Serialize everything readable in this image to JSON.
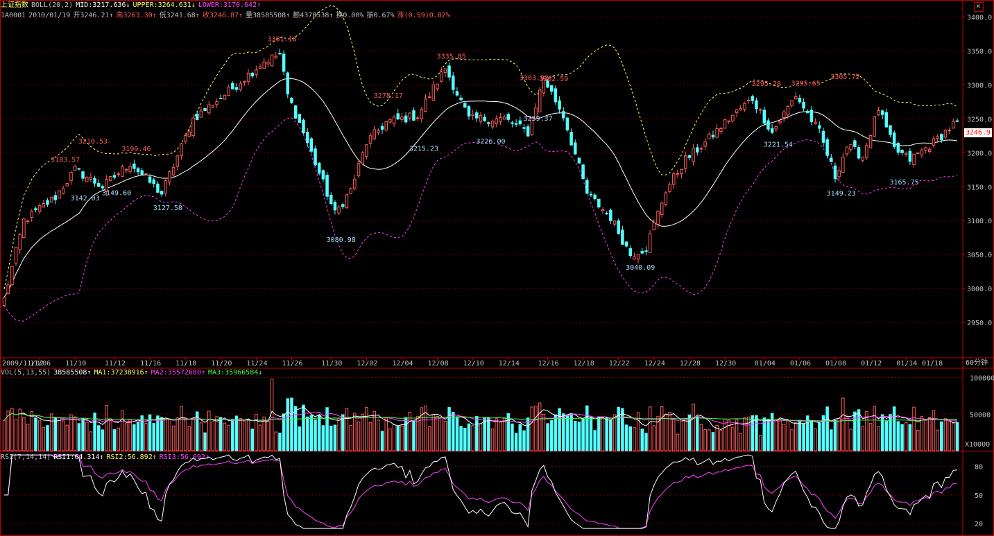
{
  "header": {
    "line1": {
      "name": "上证指数",
      "indicator": "BOLL(20,2)",
      "mid": "MID:3217.636↓",
      "upper": "UPPER:3264.631↓",
      "lower": "LOWER:3170.642↑"
    },
    "line2": {
      "code": "1A0001",
      "date": "2010/01/19",
      "open": "开3246.21↑",
      "high": "高3263.30↑",
      "low": "低3241.68↑",
      "close": "收3246.87↑",
      "volume": "量38585508↑",
      "amount": "额4378538↑",
      "turnover": "换0.00%",
      "amplitude": "振0.67%",
      "change": "涨(0.59)0.02%"
    }
  },
  "period_label": "60分钟",
  "last_price_tag": "3246.9",
  "colors": {
    "up": "#ff5a5a",
    "down": "#54ffff",
    "mid": "#ffffff",
    "upper": "#ffff66",
    "lower": "#ff44ff",
    "grid": "#7a0000",
    "axis": "#c00000",
    "vol_ma1": "#ffffff",
    "vol_ma2": "#ff44ff",
    "vol_ma3": "#44ff44",
    "rsi1": "#ffffff",
    "rsi3": "#ff44ff"
  },
  "chart_data": [
    {
      "type": "candlestick",
      "title": "上证指数 BOLL(20,2)",
      "ylim": [
        2900,
        3420
      ],
      "y_ticks": [
        "3400.0",
        "3350.0",
        "3300.0",
        "3250.0",
        "3200.0",
        "3150.0",
        "3100.0",
        "3050.0",
        "3000.0",
        "2950.0"
      ],
      "x_labels": [
        "2009/11/02",
        "11/06",
        "11/10",
        "11/12",
        "11/16",
        "11/18",
        "11/20",
        "11/24",
        "11/26",
        "11/30",
        "12/02",
        "12/04",
        "12/08",
        "12/10",
        "12/14",
        "12/16",
        "12/18",
        "12/22",
        "12/24",
        "12/28",
        "12/30",
        "01/04",
        "01/06",
        "01/08",
        "01/12",
        "01/14",
        "01/18"
      ],
      "bar_count": 243,
      "anchors": [
        {
          "i": 0,
          "v": 2985
        },
        {
          "i": 5,
          "v": 3100
        },
        {
          "i": 13,
          "v": 3135
        },
        {
          "i": 18,
          "v": 3175
        },
        {
          "i": 25,
          "v": 3150
        },
        {
          "i": 32,
          "v": 3185
        },
        {
          "i": 40,
          "v": 3140
        },
        {
          "i": 48,
          "v": 3250
        },
        {
          "i": 58,
          "v": 3295
        },
        {
          "i": 66,
          "v": 3335
        },
        {
          "i": 70,
          "v": 3345
        },
        {
          "i": 72,
          "v": 3285
        },
        {
          "i": 76,
          "v": 3230
        },
        {
          "i": 84,
          "v": 3110
        },
        {
          "i": 88,
          "v": 3145
        },
        {
          "i": 92,
          "v": 3215
        },
        {
          "i": 97,
          "v": 3245
        },
        {
          "i": 105,
          "v": 3255
        },
        {
          "i": 112,
          "v": 3325
        },
        {
          "i": 118,
          "v": 3250
        },
        {
          "i": 127,
          "v": 3250
        },
        {
          "i": 133,
          "v": 3230
        },
        {
          "i": 137,
          "v": 3310
        },
        {
          "i": 142,
          "v": 3255
        },
        {
          "i": 148,
          "v": 3140
        },
        {
          "i": 154,
          "v": 3105
        },
        {
          "i": 159,
          "v": 3050
        },
        {
          "i": 163,
          "v": 3060
        },
        {
          "i": 168,
          "v": 3145
        },
        {
          "i": 173,
          "v": 3190
        },
        {
          "i": 178,
          "v": 3215
        },
        {
          "i": 184,
          "v": 3250
        },
        {
          "i": 190,
          "v": 3280
        },
        {
          "i": 195,
          "v": 3230
        },
        {
          "i": 201,
          "v": 3285
        },
        {
          "i": 207,
          "v": 3230
        },
        {
          "i": 211,
          "v": 3165
        },
        {
          "i": 214,
          "v": 3210
        },
        {
          "i": 218,
          "v": 3195
        },
        {
          "i": 222,
          "v": 3265
        },
        {
          "i": 226,
          "v": 3205
        },
        {
          "i": 230,
          "v": 3190
        },
        {
          "i": 236,
          "v": 3215
        },
        {
          "i": 242,
          "v": 3247
        }
      ],
      "annotations": [
        {
          "i": 15,
          "v": 3183.57,
          "text": "3183.57",
          "kind": "high"
        },
        {
          "i": 22,
          "v": 3210.53,
          "text": "3210.53",
          "kind": "high"
        },
        {
          "i": 33,
          "v": 3199.46,
          "text": "3199.46",
          "kind": "high"
        },
        {
          "i": 70,
          "v": 3361.18,
          "text": "3361.18",
          "kind": "high"
        },
        {
          "i": 97,
          "v": 3278.17,
          "text": "3278.17",
          "kind": "high"
        },
        {
          "i": 113,
          "v": 3335.85,
          "text": "3335.85",
          "kind": "high"
        },
        {
          "i": 134,
          "v": 3303.92,
          "text": "3303.92",
          "kind": "high"
        },
        {
          "i": 139,
          "v": 3302.59,
          "text": "3302.59",
          "kind": "high"
        },
        {
          "i": 193,
          "v": 3295.28,
          "text": "3295.28",
          "kind": "high"
        },
        {
          "i": 203,
          "v": 3295.65,
          "text": "3295.65",
          "kind": "high"
        },
        {
          "i": 213,
          "v": 3305.72,
          "text": "3305.72",
          "kind": "high"
        },
        {
          "i": 20,
          "v": 3142.03,
          "text": "3142.03",
          "kind": "low"
        },
        {
          "i": 28,
          "v": 3149.6,
          "text": "3149.60",
          "kind": "low"
        },
        {
          "i": 41,
          "v": 3127.58,
          "text": "3127.58",
          "kind": "low"
        },
        {
          "i": 85,
          "v": 3080.98,
          "text": "3080.98",
          "kind": "low"
        },
        {
          "i": 106,
          "v": 3215.23,
          "text": "3215.23",
          "kind": "low"
        },
        {
          "i": 123,
          "v": 3226.0,
          "text": "3226.00",
          "kind": "low"
        },
        {
          "i": 135,
          "v": 3259.37,
          "text": "3259.37",
          "kind": "low"
        },
        {
          "i": 161,
          "v": 3040.09,
          "text": "3040.09",
          "kind": "low"
        },
        {
          "i": 196,
          "v": 3221.54,
          "text": "3221.54",
          "kind": "low"
        },
        {
          "i": 212,
          "v": 3149.23,
          "text": "3149.23",
          "kind": "low"
        },
        {
          "i": 228,
          "v": 3165.75,
          "text": "3165.75",
          "kind": "low"
        }
      ]
    },
    {
      "type": "bar",
      "title": "VOL(5,13,55)",
      "legend": [
        "38585508↑",
        "MA1:37238916↑",
        "MA2:35572680↑",
        "MA3:35966584↓"
      ],
      "unit_label": "X10000",
      "ylim": [
        0,
        110000
      ],
      "y_ticks": [
        "100000",
        "50000"
      ],
      "base_value": 38000
    },
    {
      "type": "line",
      "title": "RSI(7,14,14)",
      "legend": [
        "RSI1:64.314↑",
        "RSI2:56.892↑",
        "RSI3:56.892↑"
      ],
      "ylim": [
        10,
        95
      ],
      "y_ticks": [
        "80",
        "50",
        "20"
      ]
    }
  ]
}
